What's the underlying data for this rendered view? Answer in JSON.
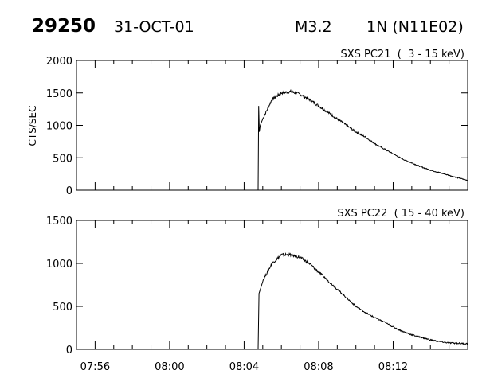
{
  "header": {
    "event_id": "29250",
    "date": "31-OCT-01",
    "goes_class": "M3.2",
    "optical": "1N (N11E02)"
  },
  "chart_data": [
    {
      "type": "line",
      "title": "SXS PC21  (  3 - 15 keV)",
      "ylabel": "CTS/SEC",
      "xlabel": "",
      "x_unit": "UT time",
      "xlim": [
        "07:55",
        "08:16"
      ],
      "ylim": [
        0,
        2000
      ],
      "yticks": [
        0,
        500,
        1000,
        1500,
        2000
      ],
      "xticks": [
        "07:56",
        "08:00",
        "08:04",
        "08:08",
        "08:12"
      ],
      "series": [
        {
          "x": [
            "07:55",
            "08:04:45",
            "08:04:47",
            "08:04:49",
            "08:04:52",
            "08:05:00",
            "08:05:30",
            "08:06:00",
            "08:06:30",
            "08:07:00",
            "08:07:30",
            "08:08:00",
            "08:08:30",
            "08:09:00",
            "08:09:30",
            "08:10:00",
            "08:10:30",
            "08:11:00",
            "08:11:30",
            "08:12:00",
            "08:12:30",
            "08:13:00",
            "08:13:30",
            "08:14:00",
            "08:14:30",
            "08:15:00",
            "08:15:30",
            "08:16:00"
          ],
          "y": [
            0,
            0,
            1300,
            900,
            1000,
            1100,
            1400,
            1500,
            1520,
            1480,
            1400,
            1300,
            1200,
            1100,
            1000,
            900,
            820,
            720,
            640,
            560,
            480,
            420,
            360,
            310,
            270,
            230,
            190,
            150
          ]
        }
      ]
    },
    {
      "type": "line",
      "title": "SXS PC22  ( 15 - 40 keV)",
      "ylabel": "",
      "xlabel": "",
      "x_unit": "UT time",
      "xlim": [
        "07:55",
        "08:16"
      ],
      "ylim": [
        0,
        1500
      ],
      "yticks": [
        0,
        500,
        1000,
        1500
      ],
      "xticks": [
        "07:56",
        "08:00",
        "08:04",
        "08:08",
        "08:12"
      ],
      "series": [
        {
          "x": [
            "07:55",
            "08:04:45",
            "08:04:48",
            "08:05:00",
            "08:05:30",
            "08:06:00",
            "08:06:30",
            "08:07:00",
            "08:07:30",
            "08:08:00",
            "08:08:30",
            "08:09:00",
            "08:09:30",
            "08:10:00",
            "08:10:30",
            "08:11:00",
            "08:11:30",
            "08:12:00",
            "08:12:30",
            "08:13:00",
            "08:13:30",
            "08:14:00",
            "08:14:30",
            "08:15:00",
            "08:15:30",
            "08:16:00"
          ],
          "y": [
            0,
            0,
            650,
            800,
            1000,
            1100,
            1100,
            1070,
            1000,
            900,
            800,
            700,
            600,
            500,
            430,
            370,
            320,
            260,
            210,
            170,
            140,
            110,
            90,
            75,
            70,
            65
          ]
        }
      ]
    }
  ]
}
